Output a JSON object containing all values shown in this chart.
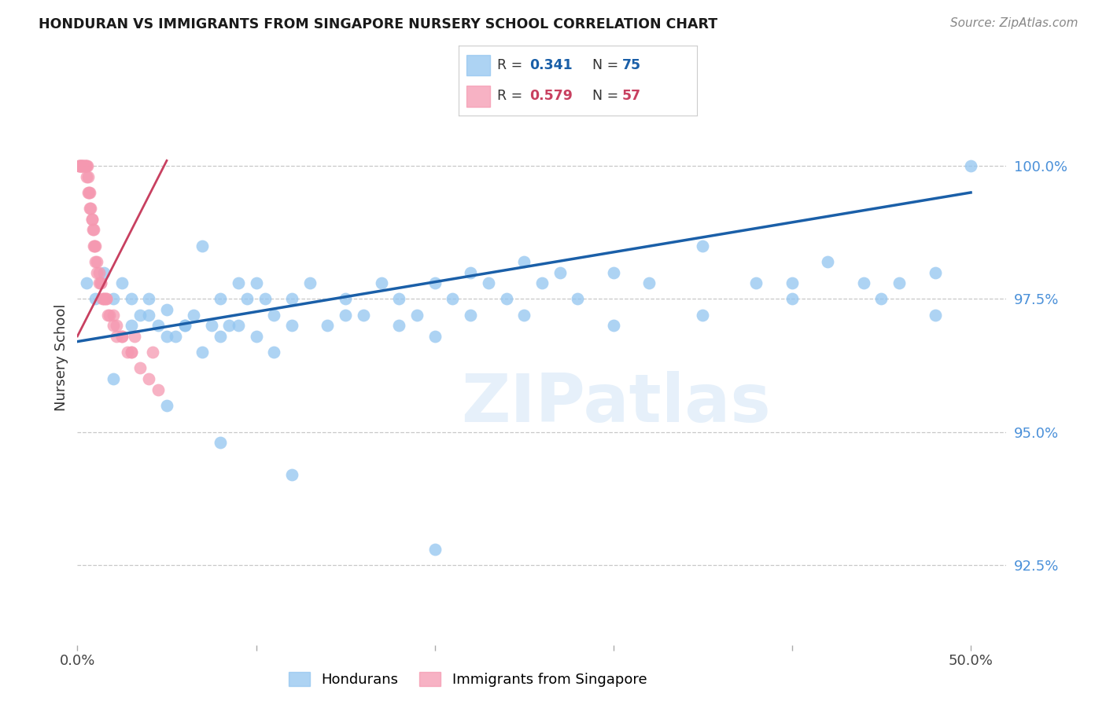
{
  "title": "HONDURAN VS IMMIGRANTS FROM SINGAPORE NURSERY SCHOOL CORRELATION CHART",
  "source": "Source: ZipAtlas.com",
  "ylabel": "Nursery School",
  "xlim": [
    0.0,
    52.0
  ],
  "ylim": [
    91.0,
    101.8
  ],
  "yticks": [
    92.5,
    95.0,
    97.5,
    100.0
  ],
  "ytick_labels": [
    "92.5%",
    "95.0%",
    "97.5%",
    "100.0%"
  ],
  "blue_color": "#92c5f0",
  "pink_color": "#f598b0",
  "line_blue": "#1a5fa8",
  "line_pink": "#c84060",
  "hondurans_label": "Hondurans",
  "singapore_label": "Immigrants from Singapore",
  "legend_blue_R": "0.341",
  "legend_blue_N": "75",
  "legend_pink_R": "0.579",
  "legend_pink_N": "57",
  "blue_scatter_x": [
    0.5,
    1.0,
    1.5,
    2.0,
    2.5,
    3.0,
    3.5,
    4.0,
    4.5,
    5.0,
    5.5,
    6.0,
    6.5,
    7.0,
    7.5,
    8.0,
    8.5,
    9.0,
    9.5,
    10.0,
    10.5,
    11.0,
    12.0,
    13.0,
    14.0,
    15.0,
    16.0,
    17.0,
    18.0,
    19.0,
    20.0,
    21.0,
    22.0,
    23.0,
    24.0,
    25.0,
    26.0,
    27.0,
    28.0,
    30.0,
    32.0,
    35.0,
    38.0,
    40.0,
    42.0,
    44.0,
    46.0,
    48.0,
    50.0,
    3.0,
    4.0,
    5.0,
    6.0,
    7.0,
    8.0,
    9.0,
    10.0,
    11.0,
    12.0,
    15.0,
    18.0,
    20.0,
    22.0,
    25.0,
    30.0,
    35.0,
    40.0,
    45.0,
    48.0,
    2.0,
    5.0,
    8.0,
    12.0,
    20.0
  ],
  "blue_scatter_y": [
    97.8,
    97.5,
    98.0,
    97.5,
    97.8,
    97.5,
    97.2,
    97.5,
    97.0,
    97.3,
    96.8,
    97.0,
    97.2,
    98.5,
    97.0,
    97.5,
    97.0,
    97.8,
    97.5,
    97.8,
    97.5,
    97.2,
    97.5,
    97.8,
    97.0,
    97.5,
    97.2,
    97.8,
    97.5,
    97.2,
    97.8,
    97.5,
    98.0,
    97.8,
    97.5,
    98.2,
    97.8,
    98.0,
    97.5,
    98.0,
    97.8,
    98.5,
    97.8,
    97.8,
    98.2,
    97.8,
    97.8,
    98.0,
    100.0,
    97.0,
    97.2,
    96.8,
    97.0,
    96.5,
    96.8,
    97.0,
    96.8,
    96.5,
    97.0,
    97.2,
    97.0,
    96.8,
    97.2,
    97.2,
    97.0,
    97.2,
    97.5,
    97.5,
    97.2,
    96.0,
    95.5,
    94.8,
    94.2,
    92.8
  ],
  "pink_scatter_x": [
    0.05,
    0.1,
    0.15,
    0.2,
    0.25,
    0.3,
    0.35,
    0.4,
    0.45,
    0.5,
    0.55,
    0.6,
    0.65,
    0.7,
    0.75,
    0.8,
    0.85,
    0.9,
    0.95,
    1.0,
    1.1,
    1.2,
    1.3,
    1.4,
    1.5,
    1.6,
    1.7,
    1.8,
    2.0,
    2.2,
    2.5,
    2.8,
    3.0,
    3.5,
    4.0,
    4.5,
    0.2,
    0.4,
    0.6,
    0.8,
    1.0,
    1.2,
    1.5,
    2.0,
    2.5,
    3.0,
    0.1,
    0.3,
    0.5,
    0.7,
    0.9,
    1.1,
    1.3,
    1.6,
    2.2,
    3.2,
    4.2
  ],
  "pink_scatter_y": [
    100.0,
    100.0,
    100.0,
    100.0,
    100.0,
    100.0,
    100.0,
    100.0,
    100.0,
    100.0,
    100.0,
    99.8,
    99.5,
    99.5,
    99.2,
    99.0,
    98.8,
    98.5,
    98.5,
    98.2,
    98.0,
    97.8,
    97.8,
    97.5,
    97.5,
    97.5,
    97.2,
    97.2,
    97.0,
    96.8,
    96.8,
    96.5,
    96.5,
    96.2,
    96.0,
    95.8,
    100.0,
    100.0,
    99.5,
    99.0,
    98.5,
    98.0,
    97.5,
    97.2,
    96.8,
    96.5,
    100.0,
    100.0,
    99.8,
    99.2,
    98.8,
    98.2,
    97.8,
    97.5,
    97.0,
    96.8,
    96.5
  ],
  "watermark": "ZIPatlas",
  "background_color": "#ffffff",
  "grid_color": "#c8c8c8",
  "pink_line_x_end": 5.0,
  "blue_line_x_end": 50.0
}
